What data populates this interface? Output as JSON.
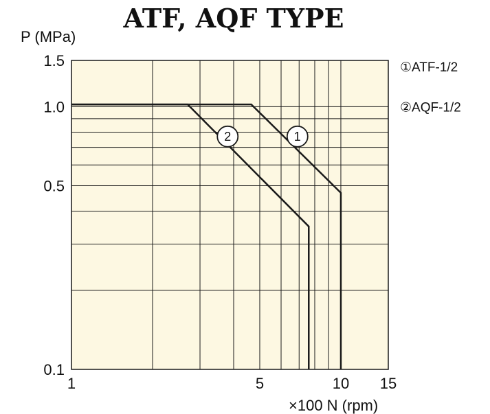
{
  "chart_data": {
    "type": "line",
    "title": "ATF, AQF TYPE",
    "ylabel": "P (MPa)",
    "xlabel": "×100 N (rpm)",
    "x_scale": "log",
    "y_scale": "log",
    "xlim": [
      1,
      15
    ],
    "ylim": [
      0.1,
      1.5
    ],
    "grid": true,
    "x_ticks": [
      {
        "value": 1,
        "label": "1"
      },
      {
        "value": 5,
        "label": "5"
      },
      {
        "value": 10,
        "label": "10"
      },
      {
        "value": 15,
        "label": "15"
      }
    ],
    "y_ticks": [
      {
        "value": 0.1,
        "label": "0.1"
      },
      {
        "value": 0.5,
        "label": "0.5"
      },
      {
        "value": 1.0,
        "label": "1.0"
      },
      {
        "value": 1.5,
        "label": "1.5"
      }
    ],
    "x_grid": [
      1,
      2,
      3,
      4,
      5,
      6,
      7,
      8,
      9,
      10,
      15
    ],
    "y_grid": [
      0.1,
      0.2,
      0.3,
      0.4,
      0.5,
      0.6,
      0.7,
      0.8,
      0.9,
      1.0,
      1.5
    ],
    "series": [
      {
        "name": "①ATF-1/2",
        "marker": "1",
        "marker_at": {
          "x": 6.9,
          "y": 0.77
        },
        "x": [
          1,
          4.65,
          10,
          10
        ],
        "y": [
          1.02,
          1.02,
          0.47,
          0.1
        ]
      },
      {
        "name": "②AQF-1/2",
        "marker": "2",
        "marker_at": {
          "x": 3.8,
          "y": 0.77
        },
        "x": [
          1,
          2.7,
          7.6,
          7.6
        ],
        "y": [
          1.02,
          1.02,
          0.35,
          0.1
        ]
      }
    ],
    "legend_position": "right"
  },
  "colors": {
    "plot_background": "#fdf8e2",
    "grid": "#1a1a1a",
    "series_line": "#1a1a1a",
    "marker_fill": "#ffffff"
  }
}
